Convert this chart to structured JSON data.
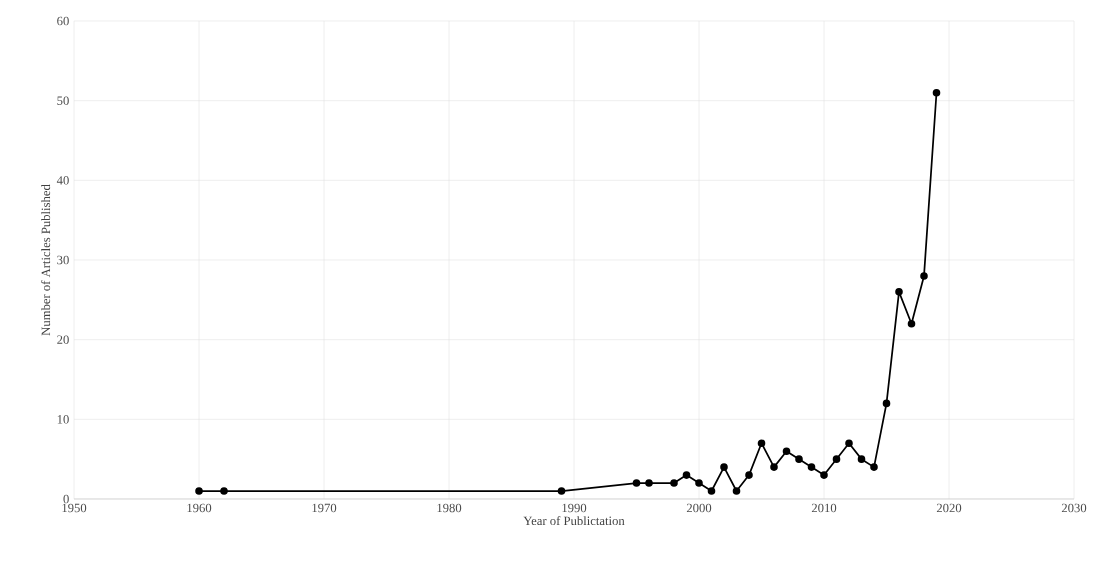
{
  "chart_data": {
    "type": "line",
    "xlabel": "Year of Publictation",
    "ylabel": "Number of Articles Published",
    "x": [
      1960,
      1962,
      1989,
      1995,
      1996,
      1998,
      1999,
      2000,
      2001,
      2002,
      2003,
      2004,
      2005,
      2006,
      2007,
      2008,
      2009,
      2010,
      2011,
      2012,
      2013,
      2014,
      2015,
      2016,
      2017,
      2018,
      2019
    ],
    "values": [
      1,
      1,
      1,
      2,
      2,
      2,
      3,
      2,
      1,
      4,
      1,
      3,
      7,
      4,
      6,
      5,
      4,
      3,
      5,
      7,
      5,
      4,
      12,
      26,
      22,
      28,
      51
    ],
    "color": "#000000",
    "marker": "circle",
    "line_style": "solid",
    "xlim": [
      1950,
      2030
    ],
    "xticks": [
      1950,
      1960,
      1970,
      1980,
      1990,
      2000,
      2010,
      2020,
      2030
    ],
    "ylim": [
      0,
      60
    ],
    "yticks": [
      0,
      10,
      20,
      30,
      40,
      50,
      60
    ],
    "grid": true
  }
}
